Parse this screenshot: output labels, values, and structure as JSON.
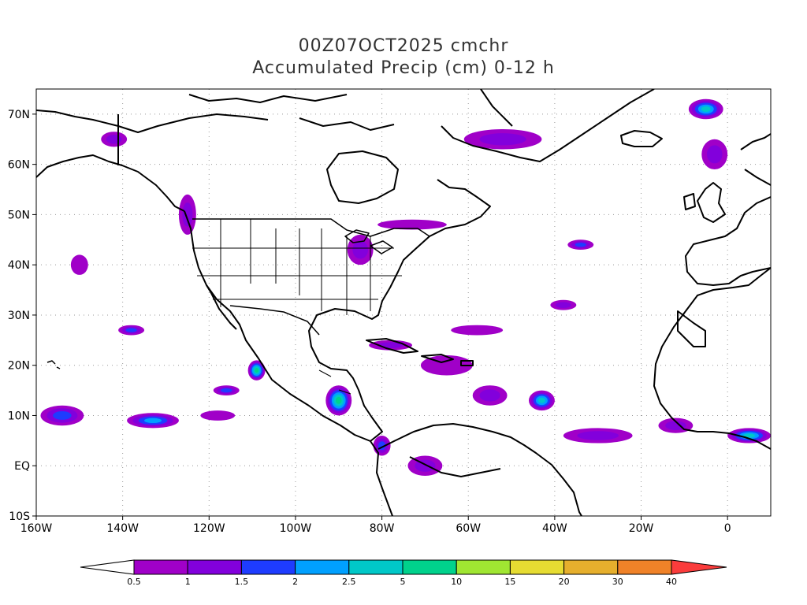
{
  "title": {
    "line1": "00Z07OCT2025 cmchr",
    "line2": "Accumulated Precip (cm) 0-12 h"
  },
  "map": {
    "lon_range": [
      -160,
      10
    ],
    "lat_range": [
      -10,
      75
    ],
    "lat_ticks": [
      {
        "value": 70,
        "label": "70N"
      },
      {
        "value": 60,
        "label": "60N"
      },
      {
        "value": 50,
        "label": "50N"
      },
      {
        "value": 40,
        "label": "40N"
      },
      {
        "value": 30,
        "label": "30N"
      },
      {
        "value": 20,
        "label": "20N"
      },
      {
        "value": 10,
        "label": "10N"
      },
      {
        "value": 0,
        "label": "EQ"
      },
      {
        "value": -10,
        "label": "10S"
      }
    ],
    "lon_ticks": [
      {
        "value": -160,
        "label": "160W"
      },
      {
        "value": -140,
        "label": "140W"
      },
      {
        "value": -120,
        "label": "120W"
      },
      {
        "value": -100,
        "label": "100W"
      },
      {
        "value": -80,
        "label": "80W"
      },
      {
        "value": -60,
        "label": "60W"
      },
      {
        "value": -40,
        "label": "40W"
      },
      {
        "value": -20,
        "label": "20W"
      },
      {
        "value": 0,
        "label": "0"
      }
    ],
    "grid": true,
    "precip_areas": [
      {
        "lon": -142,
        "lat": 65,
        "rx": 3,
        "ry": 1.5,
        "level": 1
      },
      {
        "lon": -125,
        "lat": 50,
        "rx": 2,
        "ry": 4,
        "level": 1
      },
      {
        "lon": -150,
        "lat": 40,
        "rx": 2,
        "ry": 2,
        "level": 0
      },
      {
        "lon": -138,
        "lat": 27,
        "rx": 3,
        "ry": 1,
        "level": 2
      },
      {
        "lon": -154,
        "lat": 10,
        "rx": 5,
        "ry": 2,
        "level": 2
      },
      {
        "lon": -133,
        "lat": 9,
        "rx": 6,
        "ry": 1.5,
        "level": 3
      },
      {
        "lon": -118,
        "lat": 10,
        "rx": 4,
        "ry": 1,
        "level": 0
      },
      {
        "lon": -116,
        "lat": 15,
        "rx": 3,
        "ry": 1,
        "level": 2
      },
      {
        "lon": -109,
        "lat": 19,
        "rx": 2,
        "ry": 2,
        "level": 5
      },
      {
        "lon": -90,
        "lat": 13,
        "rx": 3,
        "ry": 3,
        "level": 5
      },
      {
        "lon": -85,
        "lat": 43,
        "rx": 3,
        "ry": 3,
        "level": 1
      },
      {
        "lon": -73,
        "lat": 48,
        "rx": 8,
        "ry": 1,
        "level": 0
      },
      {
        "lon": -52,
        "lat": 65,
        "rx": 9,
        "ry": 2,
        "level": 1
      },
      {
        "lon": -5,
        "lat": 71,
        "rx": 4,
        "ry": 2,
        "level": 4
      },
      {
        "lon": -3,
        "lat": 62,
        "rx": 3,
        "ry": 3,
        "level": 1
      },
      {
        "lon": -43,
        "lat": 13,
        "rx": 3,
        "ry": 2,
        "level": 4
      },
      {
        "lon": -34,
        "lat": 44,
        "rx": 3,
        "ry": 1,
        "level": 2
      },
      {
        "lon": -38,
        "lat": 32,
        "rx": 3,
        "ry": 1,
        "level": 1
      },
      {
        "lon": -58,
        "lat": 27,
        "rx": 6,
        "ry": 1,
        "level": 0
      },
      {
        "lon": -65,
        "lat": 20,
        "rx": 6,
        "ry": 2,
        "level": 0
      },
      {
        "lon": -55,
        "lat": 14,
        "rx": 4,
        "ry": 2,
        "level": 1
      },
      {
        "lon": -30,
        "lat": 6,
        "rx": 8,
        "ry": 1.5,
        "level": 1
      },
      {
        "lon": -12,
        "lat": 8,
        "rx": 4,
        "ry": 1.5,
        "level": 1
      },
      {
        "lon": 5,
        "lat": 6,
        "rx": 5,
        "ry": 1.5,
        "level": 4
      },
      {
        "lon": -70,
        "lat": 0,
        "rx": 4,
        "ry": 2,
        "level": 1
      },
      {
        "lon": -80,
        "lat": 4,
        "rx": 2,
        "ry": 2,
        "level": 2
      },
      {
        "lon": -78,
        "lat": 24,
        "rx": 5,
        "ry": 1,
        "level": 1
      }
    ]
  },
  "colorbar": {
    "labels": [
      "0.5",
      "1",
      "1.5",
      "2",
      "2.5",
      "5",
      "10",
      "15",
      "20",
      "30",
      "40"
    ],
    "colors": [
      "#a000c8",
      "#8200dc",
      "#1e3cff",
      "#00a0ff",
      "#00c8c8",
      "#00d28c",
      "#a0e632",
      "#e6dc32",
      "#e6af2d",
      "#f08228",
      "#fa3c3c"
    ]
  }
}
